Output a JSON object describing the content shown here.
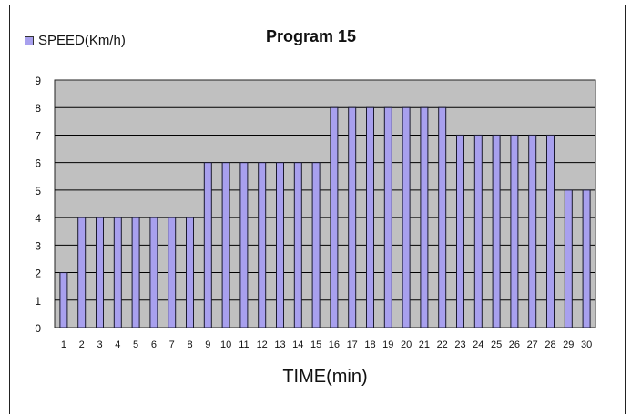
{
  "chart_data": {
    "type": "bar",
    "title": "Program 15",
    "xlabel": "TIME(min)",
    "ylabel": "",
    "series": [
      {
        "name": "SPEED(Km/h)",
        "values": [
          2,
          4,
          4,
          4,
          4,
          4,
          4,
          4,
          6,
          6,
          6,
          6,
          6,
          6,
          6,
          8,
          8,
          8,
          8,
          8,
          8,
          8,
          7,
          7,
          7,
          7,
          7,
          7,
          5,
          5
        ]
      }
    ],
    "categories": [
      "1",
      "2",
      "3",
      "4",
      "5",
      "6",
      "7",
      "8",
      "9",
      "10",
      "11",
      "12",
      "13",
      "14",
      "15",
      "16",
      "17",
      "18",
      "19",
      "20",
      "21",
      "22",
      "23",
      "24",
      "25",
      "26",
      "27",
      "28",
      "29",
      "30"
    ],
    "ylim": [
      0,
      9
    ],
    "yticks": [
      "0",
      "1",
      "2",
      "3",
      "4",
      "5",
      "6",
      "7",
      "8",
      "9"
    ],
    "grid": true,
    "legend": "top-left",
    "colors": {
      "bar": "#a8a0ee",
      "bar_border": "#1a1a2e",
      "plot_bg": "#c0c0c0",
      "grid": "#000000"
    }
  }
}
